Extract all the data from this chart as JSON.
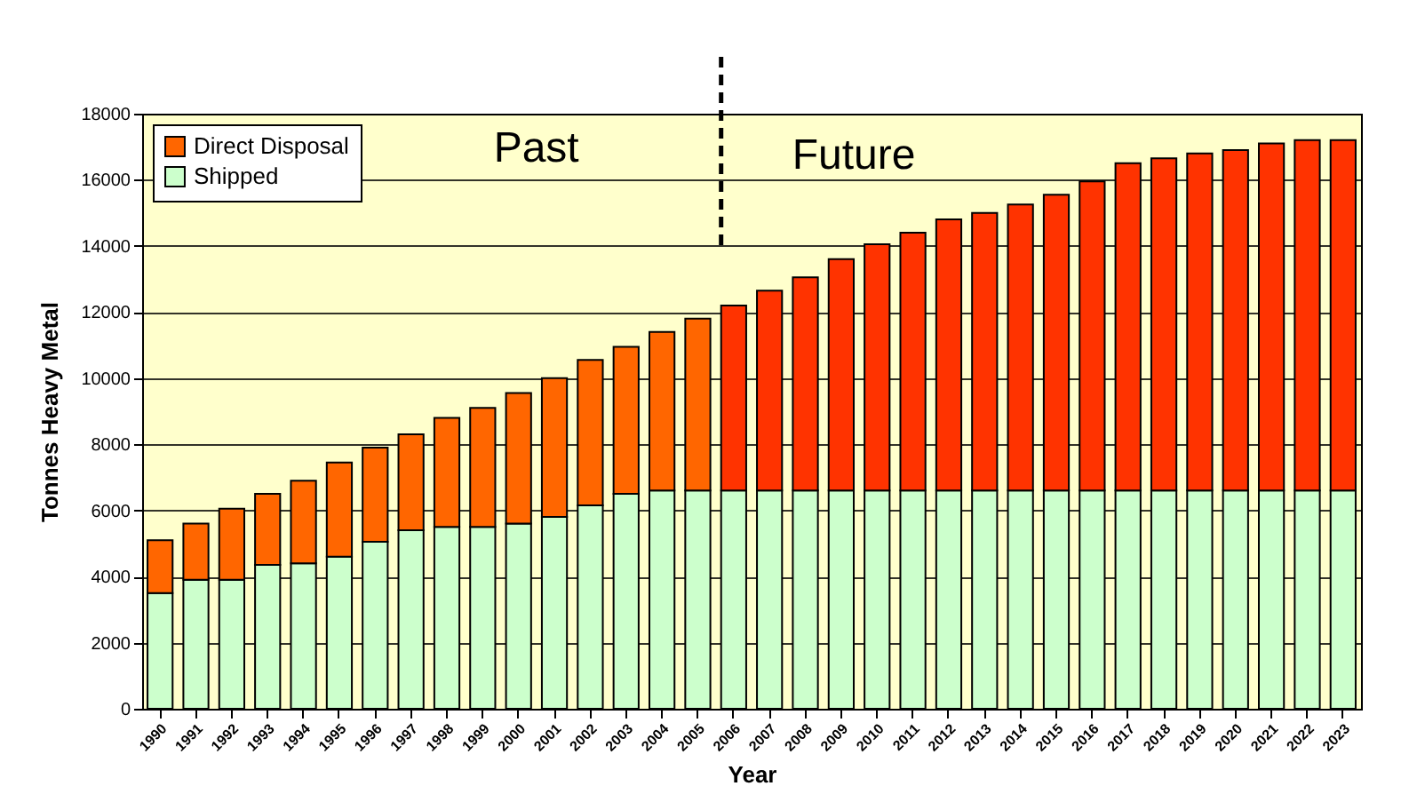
{
  "chart_data": {
    "type": "bar",
    "stacked": true,
    "xlabel": "Year",
    "ylabel": "Tonnes Heavy Metal",
    "categories": [
      "1990",
      "1991",
      "1992",
      "1993",
      "1994",
      "1995",
      "1996",
      "1997",
      "1998",
      "1999",
      "2000",
      "2001",
      "2002",
      "2003",
      "2004",
      "2005",
      "2006",
      "2007",
      "2008",
      "2009",
      "2010",
      "2011",
      "2012",
      "2013",
      "2014",
      "2015",
      "2016",
      "2017",
      "2018",
      "2019",
      "2020",
      "2021",
      "2022",
      "2023"
    ],
    "series": [
      {
        "name": "Shipped",
        "color": "#ccffcc",
        "values": [
          3500,
          3900,
          3900,
          4350,
          4400,
          4600,
          5050,
          5400,
          5500,
          5500,
          5600,
          5800,
          6150,
          6500,
          6600,
          6600,
          6600,
          6600,
          6600,
          6600,
          6600,
          6600,
          6600,
          6600,
          6600,
          6600,
          6600,
          6600,
          6600,
          6600,
          6600,
          6600,
          6600,
          6600
        ]
      },
      {
        "name": "Direct Disposal",
        "color": "#ff6600",
        "colors": [
          "#ff6600",
          "#ff6600",
          "#ff6600",
          "#ff6600",
          "#ff6600",
          "#ff6600",
          "#ff6600",
          "#ff6600",
          "#ff6600",
          "#ff6600",
          "#ff6600",
          "#ff6600",
          "#ff6600",
          "#ff6600",
          "#ff6600",
          "#ff6600",
          "#ff3300",
          "#ff3300",
          "#ff3300",
          "#ff3300",
          "#ff3300",
          "#ff3300",
          "#ff3300",
          "#ff3300",
          "#ff3300",
          "#ff3300",
          "#ff3300",
          "#ff3300",
          "#ff3300",
          "#ff3300",
          "#ff3300",
          "#ff3300",
          "#ff3300",
          "#ff3300"
        ],
        "values": [
          1600,
          1700,
          2150,
          2150,
          2500,
          2850,
          2850,
          2900,
          3300,
          3600,
          3950,
          4200,
          4400,
          4450,
          4800,
          5200,
          5600,
          6050,
          6450,
          7000,
          7450,
          7800,
          8200,
          8400,
          8650,
          8950,
          9350,
          9900,
          10050,
          10200,
          10300,
          10500,
          10600,
          10600
        ]
      }
    ],
    "ylim": [
      0,
      18000
    ],
    "yticks": [
      0,
      2000,
      4000,
      6000,
      8000,
      10000,
      12000,
      14000,
      16000,
      18000
    ],
    "grid": "y",
    "legend": "top left",
    "ref_lines": [
      {
        "axis": "x",
        "value": "2006",
        "line_style": "dashed",
        "color": "#000000"
      }
    ],
    "annotations": [
      "Past",
      "Future"
    ]
  }
}
